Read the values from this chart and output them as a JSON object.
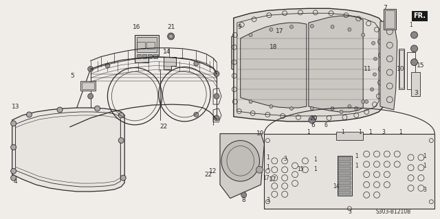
{
  "fig_width": 6.4,
  "fig_height": 3.19,
  "dpi": 100,
  "background_color": "#f0ede8",
  "line_color": "#2a2a2a",
  "diagram_code": "S303-B1210B",
  "fr_label": "FR."
}
